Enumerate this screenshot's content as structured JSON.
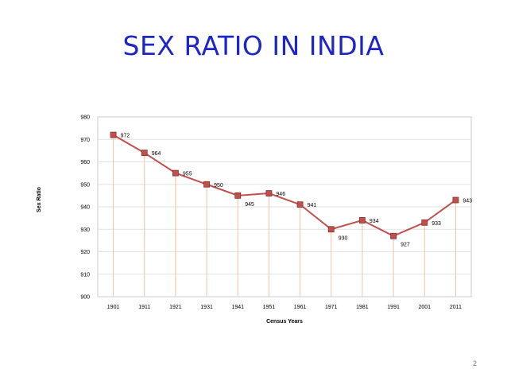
{
  "slide": {
    "title": "SEX RATIO IN INDIA",
    "page_number": "2"
  },
  "colors": {
    "line": "#c0504d",
    "marker_fill": "#c0504d",
    "marker_stroke": "#8b2f2c",
    "gridline": "#d9d9d9",
    "drop_line": "#f2c29e",
    "title": "#1f26c8"
  },
  "chart_data": {
    "type": "line",
    "title": "",
    "xlabel": "Census Years",
    "ylabel": "Sex Ratio",
    "categories": [
      "1901",
      "1911",
      "1921",
      "1931",
      "1941",
      "1951",
      "1961",
      "1971",
      "1981",
      "1991",
      "2001",
      "2011"
    ],
    "series": [
      {
        "values": [
          972,
          964,
          955,
          950,
          945,
          946,
          941,
          930,
          934,
          927,
          933,
          943
        ]
      }
    ],
    "ylim": [
      900,
      980
    ],
    "yticks": [
      900,
      910,
      920,
      930,
      940,
      950,
      960,
      970,
      980
    ],
    "grid": true,
    "drop_lines": true,
    "data_labels": true,
    "legend": "none"
  }
}
